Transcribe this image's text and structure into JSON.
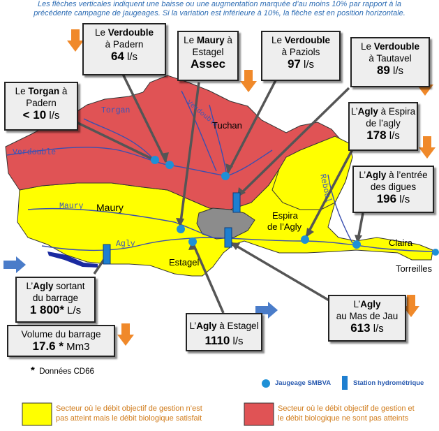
{
  "header_note": {
    "line1": "Les flèches verticales indiquent une baisse ou une augmentation marquée d’au moins 10% par rapport à la",
    "line2": "précédente campagne de jaugeages. Si la variation est inférieure à 10%, la flèche est en position horizontale."
  },
  "colors": {
    "red_sector": "#e05355",
    "yellow_sector": "#ffff00",
    "grey_zone": "#8c8c8c",
    "river": "#3a4fb0",
    "dot": "#1e90d6",
    "arrow_orange": "#f0892a",
    "arrow_blue": "#4a7cc9"
  },
  "boxes": {
    "verdouble_padern": {
      "prefix": "Le ",
      "river": "Verdouble",
      "place": "à Padern",
      "value": "64",
      "unit": " l/s",
      "trend": "down"
    },
    "maury_estagel": {
      "prefix": "Le ",
      "river": "Maury",
      "suffix": " à",
      "place": "Estagel",
      "value": "Assec"
    },
    "verdouble_paziols": {
      "prefix": "Le ",
      "river": "Verdouble",
      "place": "à Paziols",
      "value": "97",
      "unit": " l/s",
      "trend": "down"
    },
    "verdouble_tautavel": {
      "prefix": "Le ",
      "river": "Verdouble",
      "place": "à Tautavel",
      "value": "89",
      "unit": " l/s",
      "trend": "down"
    },
    "torgan_padern": {
      "prefix": "Le ",
      "river": "Torgan",
      "suffix": " à",
      "place": "Padern",
      "value": "< 10",
      "unit": " l/s"
    },
    "agly_espira": {
      "prefix": "L’",
      "river": "Agly",
      "suffix": " à Espira",
      "place": "de l’agly",
      "value": "178",
      "unit": " l/s",
      "trend": "down"
    },
    "agly_digues": {
      "prefix": "L’",
      "river": "Agly",
      "suffix": " à l’entrée",
      "place": "des digues",
      "value": "196",
      "unit": " l/s"
    },
    "agly_barrage": {
      "prefix": "L’",
      "river": "Agly",
      "suffix": " sortant",
      "place": "du barrage",
      "value": "1 800*",
      "unit": " L/s",
      "trend": "flat"
    },
    "volume_barrage": {
      "title": "Volume  du barrage",
      "value": "17.6 *",
      "unit": " Mm3",
      "trend": "down"
    },
    "agly_estagel": {
      "prefix": "L’",
      "river": "Agly",
      "suffix": " à Estagel",
      "value": "1110",
      "unit": " l/s",
      "trend": "flat"
    },
    "agly_masdejau": {
      "prefix": "L’",
      "river": "Agly",
      "place": "au Mas de Jau",
      "value": "613",
      "unit": " l/s",
      "trend": "down"
    }
  },
  "place_labels": {
    "tuchan": "Tuchan",
    "maury": "Maury",
    "espira": "Espira",
    "espira2": "de l’Agly",
    "estagel": "Estagel",
    "claira": "Claira",
    "torreilles": "Torreilles"
  },
  "river_labels": {
    "torgan": "Torgan",
    "verdouble": "Verdouble",
    "maury": "Maury",
    "agly": "Agly",
    "verdouble2": "Verdouble",
    "agly2": "Agly",
    "reboul": "Reboul"
  },
  "footnote": "Données CD66",
  "footnote_star": "*",
  "legend": {
    "jaugeage": "Jaugeage SMBVA",
    "station": "Station hydrométrique",
    "yellow_text1": "Secteur où le débit objectif de gestion n’est",
    "yellow_text2": "pas atteint mais le débit biologique satisfait",
    "red_text1": "Secteur où le débit objectif de gestion et",
    "red_text2": "le débit biologique ne sont pas atteints"
  }
}
